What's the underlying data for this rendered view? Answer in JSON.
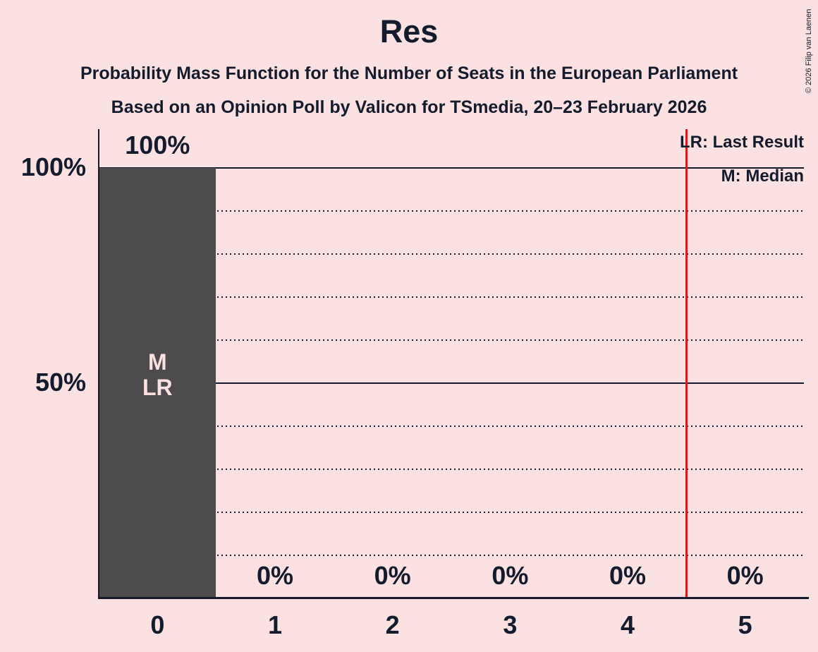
{
  "page": {
    "background_color": "#fbe1e2",
    "text_color": "#141b2c",
    "copyright": "© 2026 Filip van Laenen"
  },
  "chart_data": {
    "type": "bar",
    "title": "Res",
    "subtitle": "Probability Mass Function for the Number of Seats in the European Parliament",
    "source": "Based on an Opinion Poll by Valicon for TSmedia, 20–23 February 2026",
    "categories": [
      "0",
      "1",
      "2",
      "3",
      "4",
      "5"
    ],
    "values": [
      100,
      0,
      0,
      0,
      0,
      0
    ],
    "value_labels": [
      "100%",
      "0%",
      "0%",
      "0%",
      "0%",
      "0%"
    ],
    "ylim": [
      0,
      100
    ],
    "yticks": [
      {
        "pct": 100,
        "label": "100%"
      },
      {
        "pct": 50,
        "label": "50%"
      }
    ],
    "solid_gridlines_pct": [
      100,
      50
    ],
    "dotted_gridlines_pct": [
      90,
      80,
      70,
      60,
      40,
      30,
      20,
      10
    ],
    "bar_annotations": [
      {
        "category_index": 0,
        "lines": [
          "M",
          "LR"
        ]
      }
    ],
    "last_result_x": 4.5,
    "legend": [
      "LR: Last Result",
      "M: Median"
    ],
    "legend_position": "top-right",
    "grid": "horizontal-only",
    "colors": {
      "bar": "#4d4b4d",
      "bar_label": "#fbe1e2",
      "last_result_line": "#f01010",
      "axis": "#141b2c"
    }
  }
}
